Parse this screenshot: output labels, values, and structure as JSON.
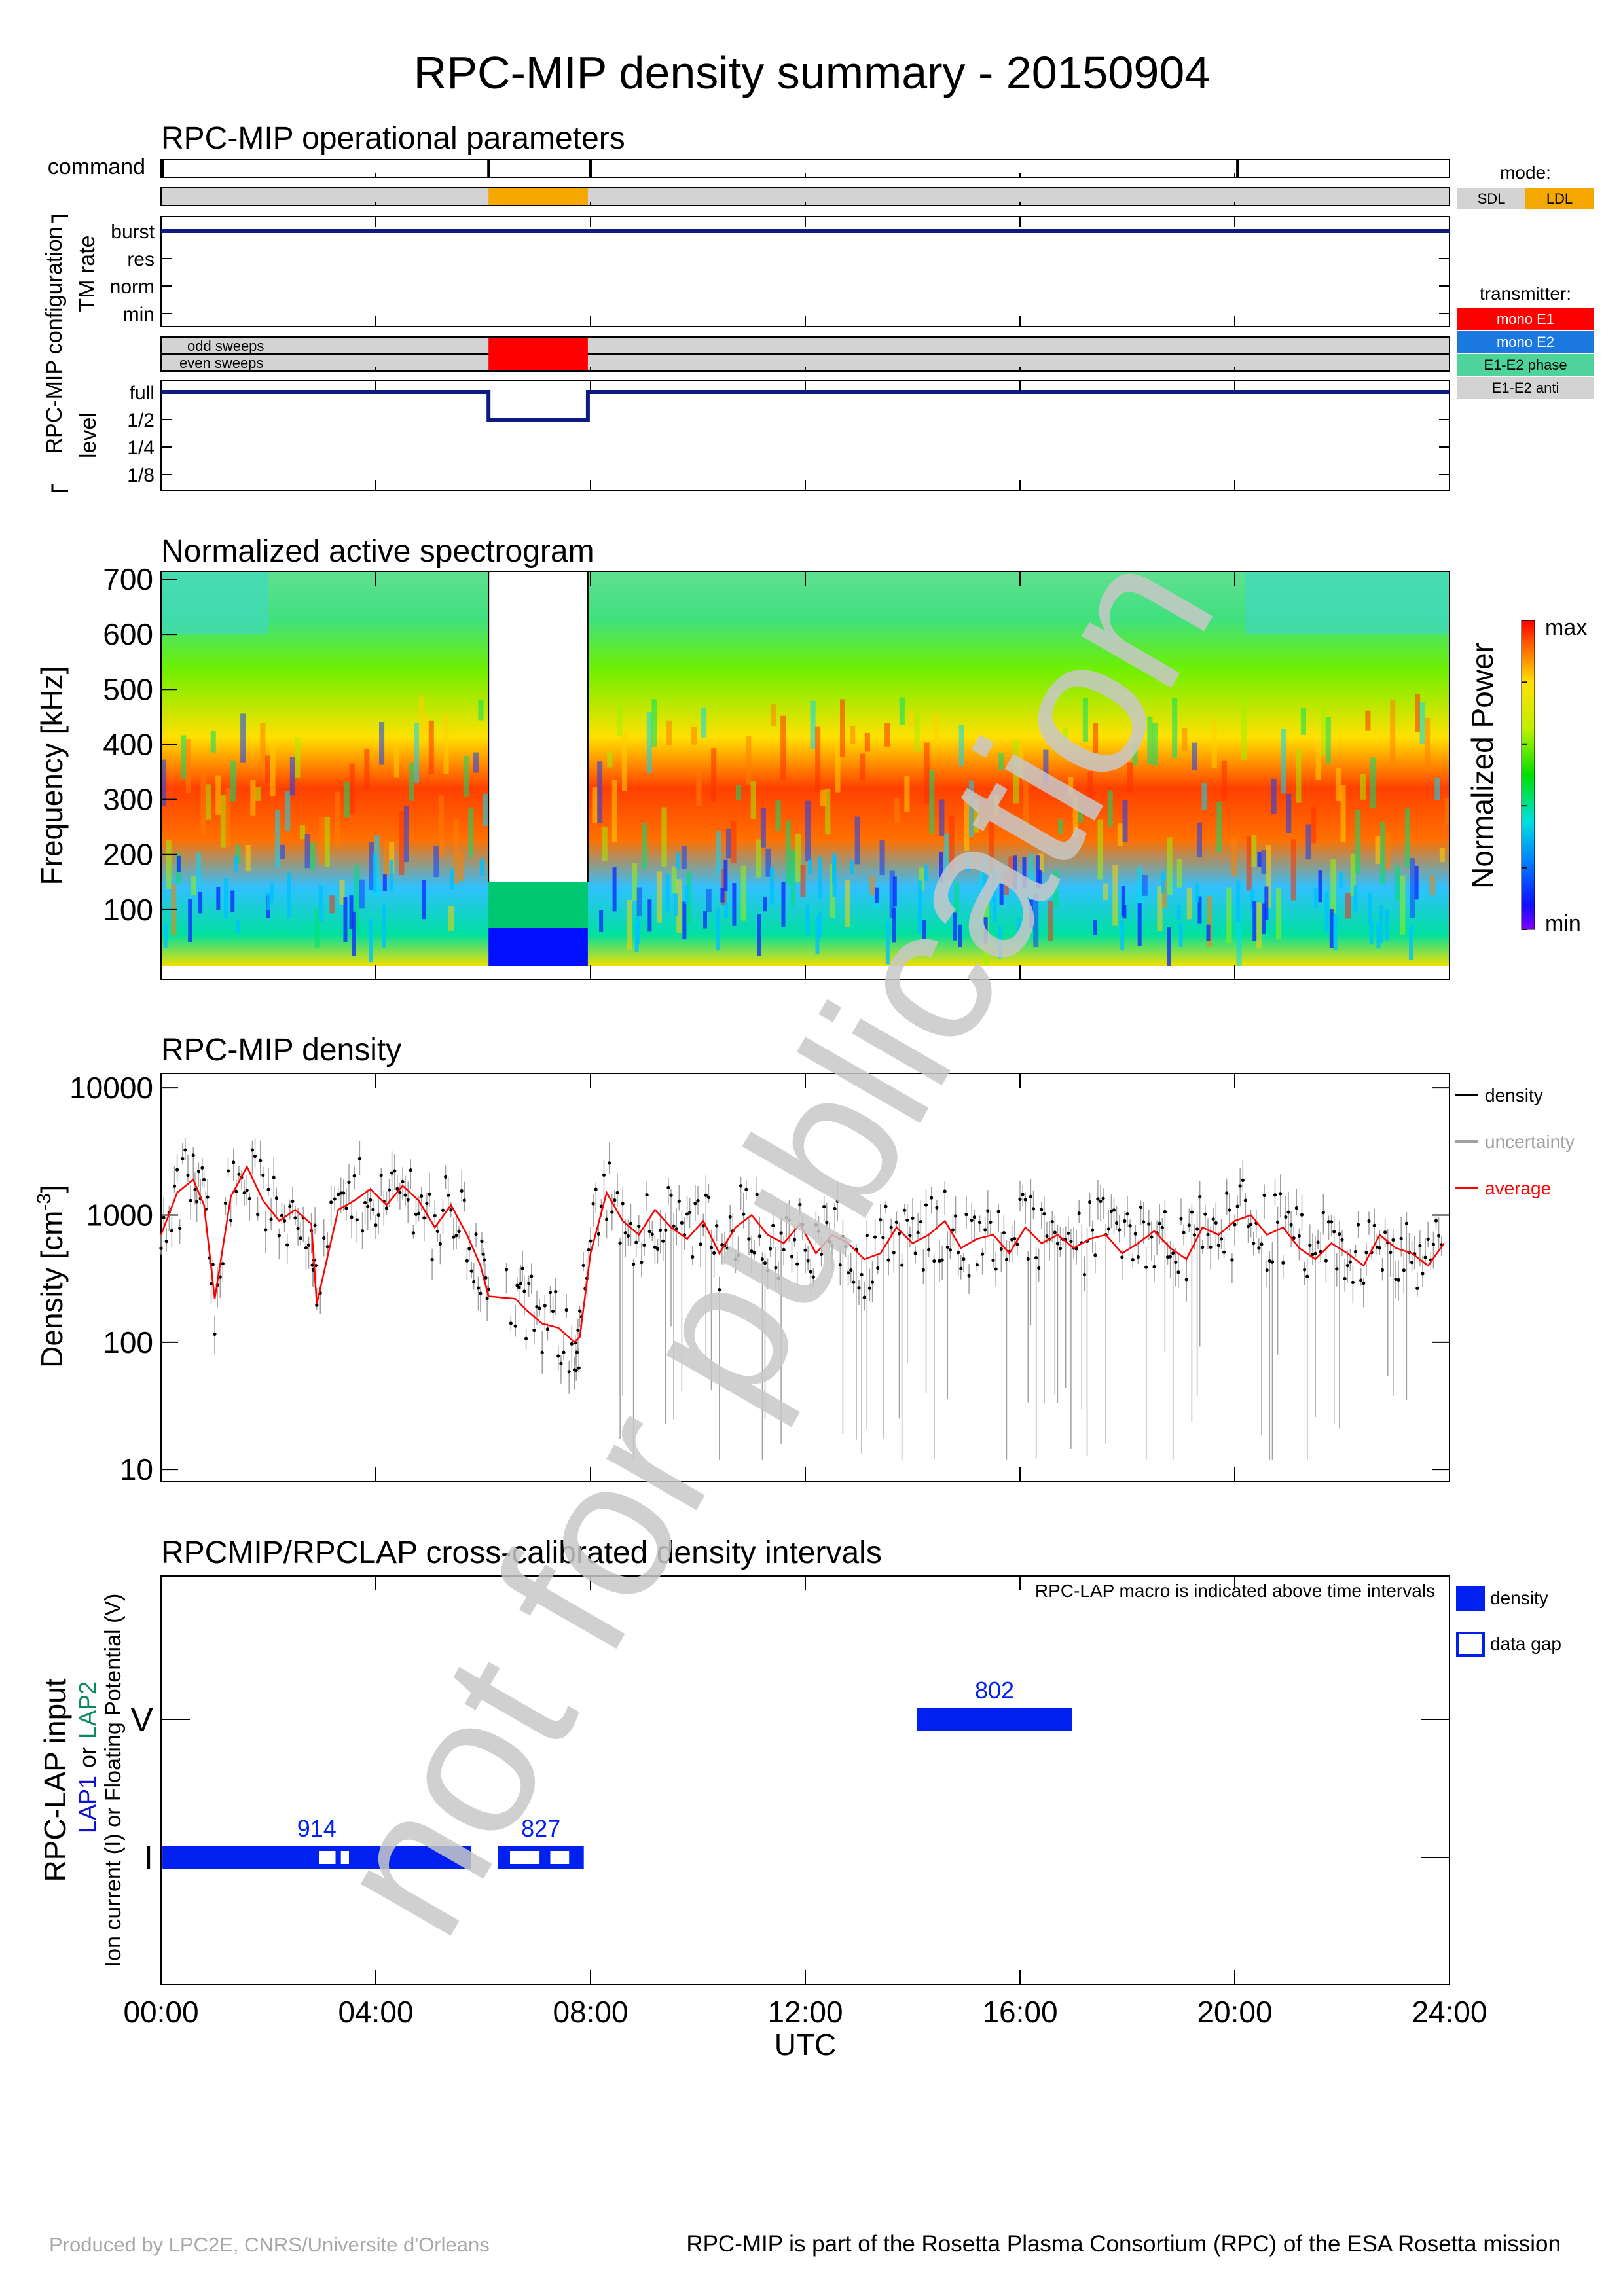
{
  "title": "RPC-MIP density summary - 20150904",
  "footer": {
    "left": "Produced by LPC2E, CNRS/Universite d'Orleans",
    "right": "RPC-MIP is part of the Rosetta Plasma Consortium (RPC) of the ESA Rosetta mission"
  },
  "watermark": "not for publication",
  "colors": {
    "navy": "#0d1a80",
    "orange": "#f5a800",
    "red": "#ff0000",
    "blue": "#0020f0",
    "lightgray": "#d3d3d3",
    "mono_e2": "#1a78e0",
    "phase": "#4ed49a",
    "watermark": "#c8c8c8"
  },
  "x_axis": {
    "title": "UTC",
    "ticks": [
      "00:00",
      "04:00",
      "08:00",
      "12:00",
      "16:00",
      "20:00",
      "24:00"
    ],
    "range_hours": [
      0,
      24
    ]
  },
  "panel1": {
    "title": "RPC-MIP operational parameters",
    "command_label": "command",
    "command_times": [
      6.1,
      8.0,
      20.05
    ],
    "mode_intervals": [
      {
        "start": 6.1,
        "end": 7.95,
        "mode": "LDL"
      }
    ],
    "group_label": "RPC-MIP configuration",
    "tm_label": "TM rate",
    "tm_levels": [
      "burst",
      "res",
      "norm",
      "min"
    ],
    "tm_value": "burst",
    "sweep_labels": [
      "odd sweeps",
      "even sweeps"
    ],
    "transmitter_intervals": [
      {
        "start": 6.1,
        "end": 7.95,
        "transmitter": "mono E1"
      }
    ],
    "level_label": "level",
    "level_values": [
      "full",
      "1/2",
      "1/4",
      "1/8"
    ],
    "level_series": [
      {
        "start": 0,
        "end": 6.1,
        "level": "full"
      },
      {
        "start": 6.1,
        "end": 7.95,
        "level": "1/2"
      },
      {
        "start": 7.95,
        "end": 24,
        "level": "full"
      }
    ],
    "mode_legend": {
      "title": "mode:",
      "items": [
        {
          "label": "SDL",
          "color": "#d3d3d3"
        },
        {
          "label": "LDL",
          "color": "#f5a800"
        }
      ]
    },
    "transmitter_legend": {
      "title": "transmitter:",
      "items": [
        {
          "label": "mono E1",
          "color": "#ff0000"
        },
        {
          "label": "mono E2",
          "color": "#1a78e0"
        },
        {
          "label": "E1-E2 phase",
          "color": "#4ed49a"
        },
        {
          "label": "E1-E2 anti",
          "color": "#d3d3d3"
        }
      ]
    }
  },
  "panel2": {
    "title": "Normalized active spectrogram",
    "ylabel": "Frequency [kHz]",
    "yticks": [
      "100",
      "200",
      "300",
      "400",
      "500",
      "600",
      "700"
    ],
    "colorbar_label": "Normalized Power",
    "colorbar_max": "max",
    "colorbar_min": "min"
  },
  "panel3": {
    "title": "RPC-MIP density",
    "ylabel": "Density [cm",
    "ylabel_sup": "-3",
    "ylabel_end": "]",
    "yticks": [
      "10",
      "100",
      "1000",
      "10000"
    ],
    "legend": [
      {
        "label": "density",
        "color": "#000000"
      },
      {
        "label": "uncertainty",
        "color": "#a0a0a0"
      },
      {
        "label": "average",
        "color": "#ff0000"
      }
    ]
  },
  "panel4": {
    "title": "RPCMIP/RPCLAP cross-calibrated density intervals",
    "note": "RPC-LAP macro is indicated above time intervals",
    "ylabel_main": "RPC-LAP input",
    "ylabel_lap1": "LAP1",
    "ylabel_or": "or",
    "ylabel_lap2": "LAP2",
    "ylabel_line3": "Ion current (I) or Floating Potential (V)",
    "ylevels": [
      "V",
      "I"
    ],
    "legend": [
      {
        "label": "density",
        "filled": true
      },
      {
        "label": "data gap",
        "filled": false
      }
    ],
    "intervals": [
      {
        "level": "I",
        "start": 0.05,
        "end": 5.75,
        "macro": "914",
        "gaps": [
          [
            2.95,
            3.25
          ],
          [
            3.35,
            3.5
          ]
        ]
      },
      {
        "level": "I",
        "start": 6.3,
        "end": 7.85,
        "macro": "827",
        "gaps": [
          [
            6.5,
            7.05
          ],
          [
            7.25,
            7.6
          ]
        ]
      },
      {
        "level": "V",
        "start": 14.1,
        "end": 16.95,
        "macro": "802",
        "gaps": []
      }
    ]
  },
  "chart_data": {
    "type": "scatter",
    "title": "RPC-MIP density",
    "xlabel": "UTC",
    "ylabel": "Density [cm-3]",
    "yscale": "log",
    "ylim": [
      8,
      10000
    ],
    "xlim": [
      0,
      24
    ],
    "series": [
      {
        "name": "average",
        "x": [
          0.0,
          0.3,
          0.6,
          0.8,
          1.0,
          1.3,
          1.6,
          1.9,
          2.2,
          2.5,
          2.8,
          2.9,
          3.3,
          3.6,
          3.9,
          4.2,
          4.5,
          4.8,
          5.1,
          5.4,
          5.7,
          5.95,
          6.1,
          6.6,
          6.8,
          7.1,
          7.4,
          7.7,
          7.8,
          8.0,
          8.3,
          8.6,
          8.9,
          9.2,
          9.5,
          9.8,
          10.1,
          10.4,
          10.7,
          11.0,
          11.3,
          11.6,
          11.9,
          12.2,
          12.5,
          12.8,
          13.1,
          13.4,
          13.7,
          14.0,
          14.3,
          14.6,
          14.9,
          15.2,
          15.5,
          15.8,
          16.1,
          16.4,
          16.7,
          17.0,
          17.3,
          17.6,
          17.9,
          18.2,
          18.5,
          18.8,
          19.1,
          19.4,
          19.7,
          20.0,
          20.3,
          20.6,
          20.9,
          21.2,
          21.5,
          21.8,
          22.1,
          22.4,
          22.7,
          23.0,
          23.3,
          23.6,
          23.9
        ],
        "y": [
          700,
          1500,
          1900,
          1200,
          220,
          1400,
          2400,
          1300,
          900,
          1100,
          850,
          200,
          1100,
          1300,
          1600,
          1200,
          1700,
          1300,
          800,
          1200,
          700,
          400,
          230,
          220,
          180,
          140,
          130,
          100,
          110,
          500,
          1500,
          900,
          700,
          1100,
          800,
          650,
          900,
          500,
          800,
          1000,
          700,
          600,
          850,
          500,
          700,
          600,
          450,
          500,
          800,
          600,
          700,
          900,
          550,
          650,
          700,
          500,
          800,
          600,
          700,
          550,
          650,
          700,
          500,
          600,
          750,
          550,
          450,
          800,
          700,
          900,
          1000,
          700,
          800,
          550,
          450,
          600,
          500,
          400,
          700,
          550,
          500,
          400,
          600
        ]
      }
    ]
  }
}
